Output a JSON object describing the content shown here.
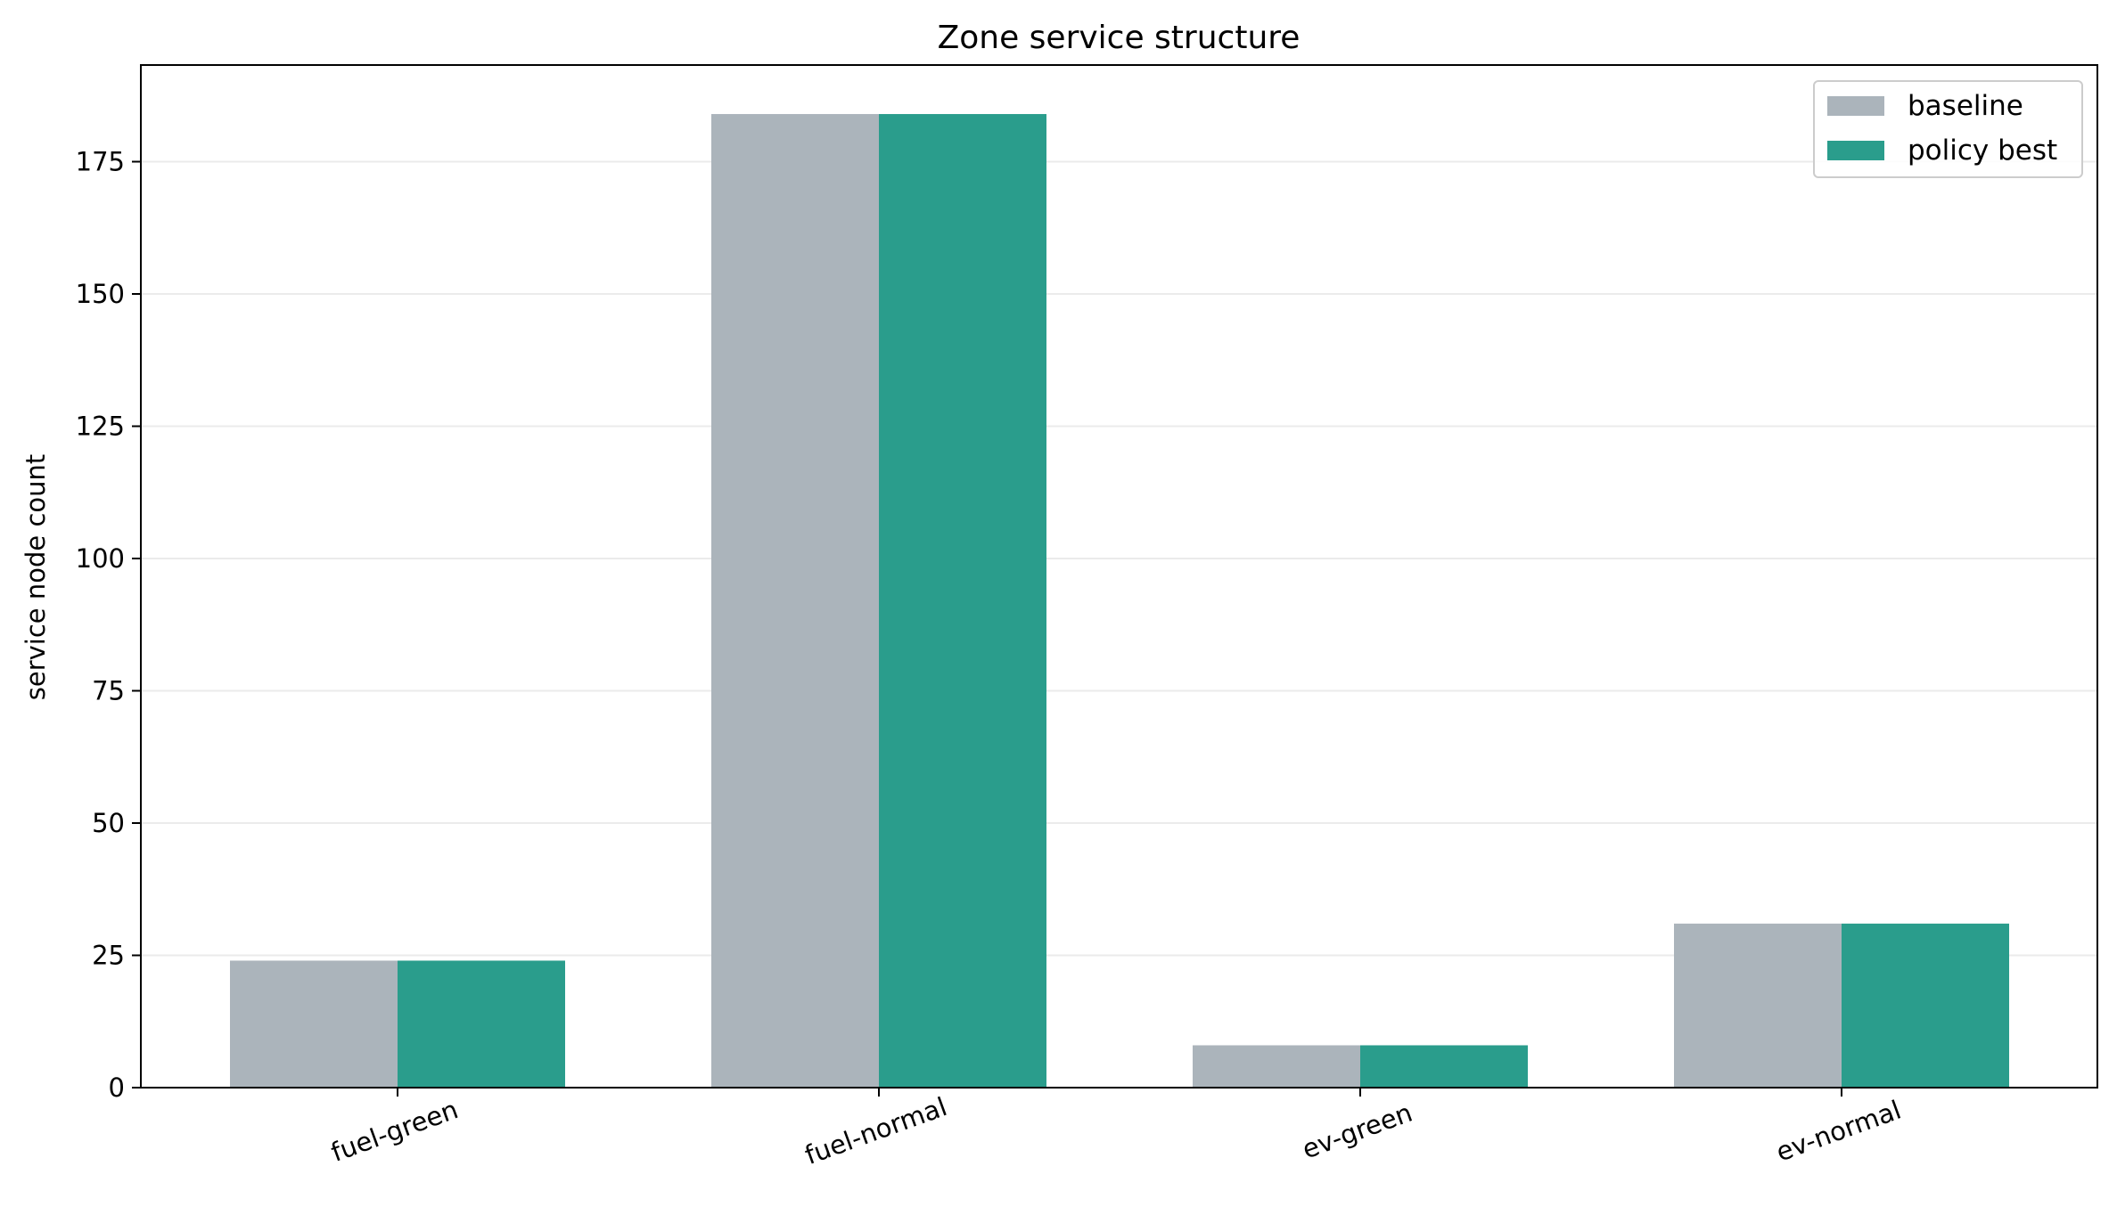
{
  "chart_data": {
    "type": "bar",
    "title": "Zone service structure",
    "xlabel": "",
    "ylabel": "service node count",
    "categories": [
      "fuel-green",
      "fuel-normal",
      "ev-green",
      "ev-normal"
    ],
    "series": [
      {
        "name": "baseline",
        "values": [
          24,
          184,
          8,
          31
        ],
        "color": "#abb4bb"
      },
      {
        "name": "policy best",
        "values": [
          24,
          184,
          8,
          31
        ],
        "color": "#2a9d8c"
      }
    ],
    "ylim": [
      0,
      193.2
    ],
    "yticks": [
      "0",
      "25",
      "50",
      "75",
      "100",
      "125",
      "150",
      "175"
    ],
    "ytick_values": [
      0,
      25,
      50,
      75,
      100,
      125,
      150,
      175
    ],
    "grid": "y",
    "legend": "top-right",
    "xtick_rotation_deg": -20
  }
}
